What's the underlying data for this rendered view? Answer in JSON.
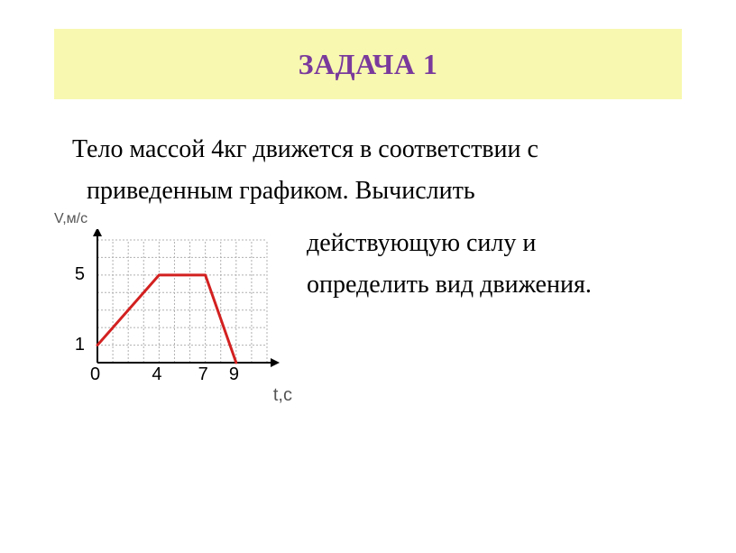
{
  "title": "ЗАДАЧА 1",
  "body": {
    "line1": "Тело массой 4кг движется в соответствии с",
    "line2": "приведенным графиком.  Вычислить",
    "line3": "действующую силу и",
    "line4": "определить вид движения."
  },
  "chart": {
    "type": "line",
    "y_label": "V,м/с",
    "x_label": "t,с",
    "x_ticks": [
      0,
      4,
      7,
      9
    ],
    "y_ticks": [
      1,
      5
    ],
    "xlim": [
      0,
      11
    ],
    "ylim": [
      0,
      7
    ],
    "grid_step_x": 1,
    "grid_step_y": 1,
    "grid_color": "#b0b0b0",
    "grid_dash": "2,2",
    "axis_color": "#000000",
    "axis_width": 2,
    "line_color": "#d32020",
    "line_width": 3,
    "points": [
      {
        "x": 0,
        "y": 1
      },
      {
        "x": 4,
        "y": 5
      },
      {
        "x": 7,
        "y": 5
      },
      {
        "x": 9,
        "y": 0
      }
    ],
    "tick_font_size": 20,
    "label_font_size": 16,
    "background_color": "#ffffff"
  },
  "colors": {
    "title_bg": "#f8f8b0",
    "title_text": "#7a3a9c",
    "body_text": "#000000"
  }
}
